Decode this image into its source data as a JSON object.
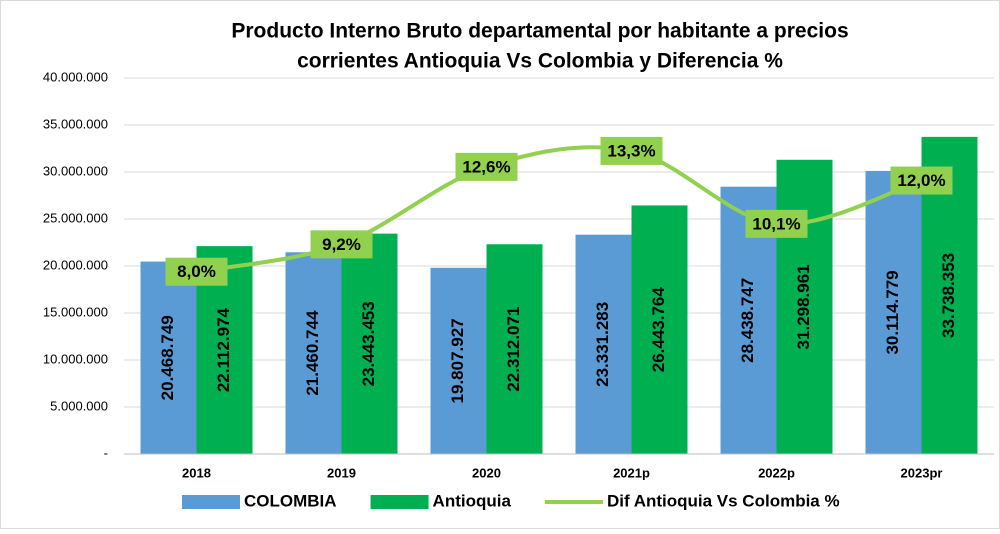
{
  "chart_data": {
    "type": "bar",
    "title": [
      "Producto Interno Bruto departamental por habitante a precios",
      "corrientes Antioquia Vs Colombia y Diferencia %"
    ],
    "categories": [
      "2018",
      "2019",
      "2020",
      "2021p",
      "2022p",
      "2023pr"
    ],
    "series": [
      {
        "name": "COLOMBIA",
        "color": "#5b9bd5",
        "type": "bar",
        "values": [
          20468749,
          21460744,
          19807927,
          23331283,
          28438747,
          30114779
        ],
        "value_labels": [
          "20.468.749",
          "21.460.744",
          "19.807.927",
          "23.331.283",
          "28.438.747",
          "30.114.779"
        ]
      },
      {
        "name": "Antioquia",
        "color": "#00b050",
        "type": "bar",
        "values": [
          22112974,
          23443453,
          22312071,
          26443764,
          31298961,
          33738353
        ],
        "value_labels": [
          "22.112.974",
          "23.443.453",
          "22.312.071",
          "26.443.764",
          "31.298.961",
          "33.738.353"
        ]
      },
      {
        "name": "Dif Antioquia Vs Colombia %",
        "color": "#92d050",
        "type": "line",
        "axis": "y2",
        "values": [
          8.0,
          9.2,
          12.6,
          13.3,
          10.1,
          12.0
        ],
        "value_labels": [
          "8,0%",
          "9,2%",
          "12,6%",
          "13,3%",
          "10,1%",
          "12,0%"
        ]
      }
    ],
    "ylim": [
      0,
      40000000
    ],
    "yticks": [
      {
        "value": 0,
        "label": "-"
      },
      {
        "value": 5000000,
        "label": "5.000.000"
      },
      {
        "value": 10000000,
        "label": "10.000.000"
      },
      {
        "value": 15000000,
        "label": "15.000.000"
      },
      {
        "value": 20000000,
        "label": "20.000.000"
      },
      {
        "value": 25000000,
        "label": "25.000.000"
      },
      {
        "value": 30000000,
        "label": "30.000.000"
      },
      {
        "value": 35000000,
        "label": "35.000.000"
      },
      {
        "value": 40000000,
        "label": "40.000.000"
      }
    ],
    "y2lim": [
      0,
      16.5
    ],
    "grid": true,
    "legend": "bottom"
  }
}
